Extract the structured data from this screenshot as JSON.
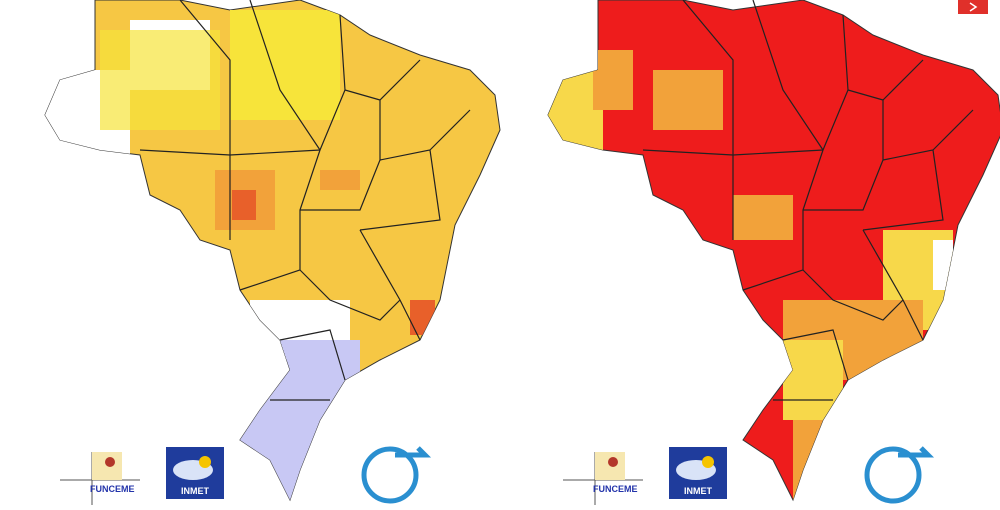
{
  "panels": [
    {
      "logos": {
        "funceme": "FUNCEME",
        "inmet": "INMET"
      }
    },
    {
      "logos": {
        "funceme": "FUNCEME",
        "inmet": "INMET"
      }
    }
  ]
}
